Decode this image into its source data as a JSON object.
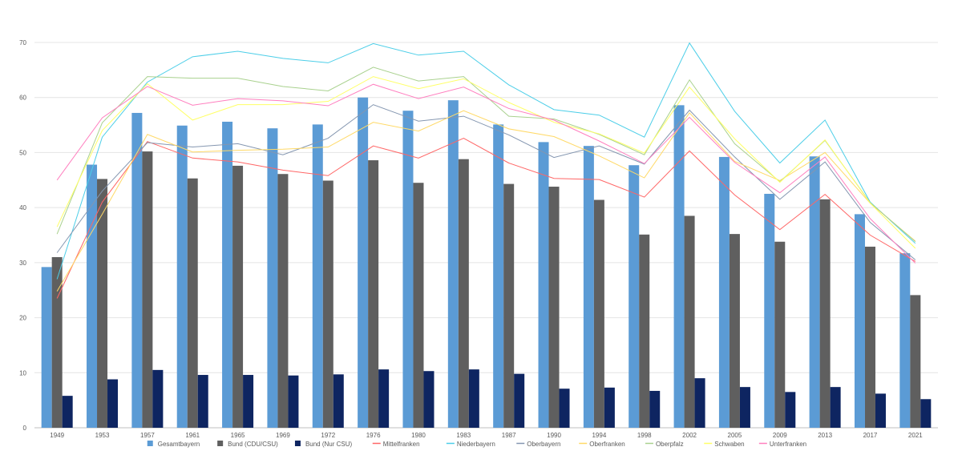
{
  "chart_data": {
    "type": "bar",
    "title": "",
    "xlabel": "",
    "ylabel": "",
    "ylim": [
      0,
      70
    ],
    "yticks": [
      "0",
      "10",
      "20",
      "30",
      "40",
      "50",
      "60",
      "70"
    ],
    "grid": true,
    "legend_position": "bottom",
    "categories": [
      "1949",
      "1953",
      "1957",
      "1961",
      "1965",
      "1969",
      "1972",
      "1976",
      "1980",
      "1983",
      "1987",
      "1990",
      "1994",
      "1998",
      "2002",
      "2005",
      "2009",
      "2013",
      "2017",
      "2021"
    ],
    "bar_series": [
      {
        "name": "Gesamtbayern",
        "color": "#5b9bd5",
        "values": [
          29.2,
          47.8,
          57.2,
          54.9,
          55.6,
          54.4,
          55.1,
          60.0,
          57.6,
          59.5,
          55.1,
          51.9,
          51.2,
          47.7,
          58.6,
          49.2,
          42.5,
          49.3,
          38.8,
          31.7
        ]
      },
      {
        "name": "Bund (CDU/CSU)",
        "color": "#5f5f5f",
        "values": [
          31.0,
          45.2,
          50.2,
          45.3,
          47.6,
          46.1,
          44.9,
          48.6,
          44.5,
          48.8,
          44.3,
          43.8,
          41.4,
          35.1,
          38.5,
          35.2,
          33.8,
          41.5,
          32.9,
          24.1
        ]
      },
      {
        "name": "Bund (Nur CSU)",
        "color": "#0e2561",
        "values": [
          5.8,
          8.8,
          10.5,
          9.6,
          9.6,
          9.5,
          9.7,
          10.6,
          10.3,
          10.6,
          9.8,
          7.1,
          7.3,
          6.7,
          9.0,
          7.4,
          6.5,
          7.4,
          6.2,
          5.2
        ]
      }
    ],
    "line_series": [
      {
        "name": "Mittelfranken",
        "color": "#ff6666",
        "values": [
          23.5,
          41.0,
          52.0,
          49.0,
          48.3,
          46.8,
          45.8,
          51.2,
          49.0,
          52.6,
          48.1,
          45.3,
          45.1,
          41.9,
          50.3,
          42.3,
          36.0,
          42.4,
          35.0,
          30.2
        ]
      },
      {
        "name": "Niederbayern",
        "color": "#4ccee8",
        "values": [
          27.0,
          52.8,
          62.8,
          67.4,
          68.4,
          67.1,
          66.3,
          69.8,
          67.7,
          68.4,
          62.3,
          57.8,
          56.8,
          52.8,
          69.9,
          57.5,
          48.1,
          55.9,
          41.0,
          33.5
        ]
      },
      {
        "name": "Oberbayern",
        "color": "#8496b0",
        "values": [
          31.8,
          43.0,
          51.8,
          51.0,
          51.6,
          49.6,
          52.6,
          58.7,
          55.7,
          56.6,
          53.2,
          49.1,
          51.2,
          47.9,
          57.7,
          49.2,
          41.5,
          48.3,
          37.3,
          30.5
        ]
      },
      {
        "name": "Oberfranken",
        "color": "#ffd966",
        "values": [
          24.8,
          38.8,
          53.3,
          50.1,
          50.4,
          50.6,
          51.0,
          55.5,
          53.9,
          57.6,
          54.3,
          52.9,
          49.4,
          45.4,
          57.2,
          48.4,
          44.9,
          50.0,
          40.8,
          33.9
        ]
      },
      {
        "name": "Oberpfalz",
        "color": "#a9d18e",
        "values": [
          35.2,
          55.4,
          63.8,
          63.5,
          63.5,
          62.0,
          61.2,
          65.5,
          63.0,
          63.8,
          56.6,
          56.1,
          53.3,
          49.6,
          63.2,
          51.6,
          44.7,
          52.2,
          40.9,
          33.8
        ]
      },
      {
        "name": "Schwaben",
        "color": "#ffff66",
        "values": [
          36.5,
          54.0,
          62.5,
          55.9,
          58.7,
          58.7,
          59.3,
          63.8,
          61.6,
          63.4,
          59.1,
          55.5,
          53.4,
          49.9,
          61.9,
          52.5,
          44.6,
          52.3,
          40.8,
          32.6
        ]
      },
      {
        "name": "Unterfranken",
        "color": "#ff7fbf",
        "values": [
          45.0,
          56.3,
          62.0,
          58.6,
          59.8,
          59.4,
          58.5,
          62.4,
          59.8,
          61.9,
          58.0,
          55.9,
          52.1,
          48.0,
          56.4,
          48.2,
          42.7,
          49.2,
          38.0,
          29.9
        ]
      }
    ]
  }
}
